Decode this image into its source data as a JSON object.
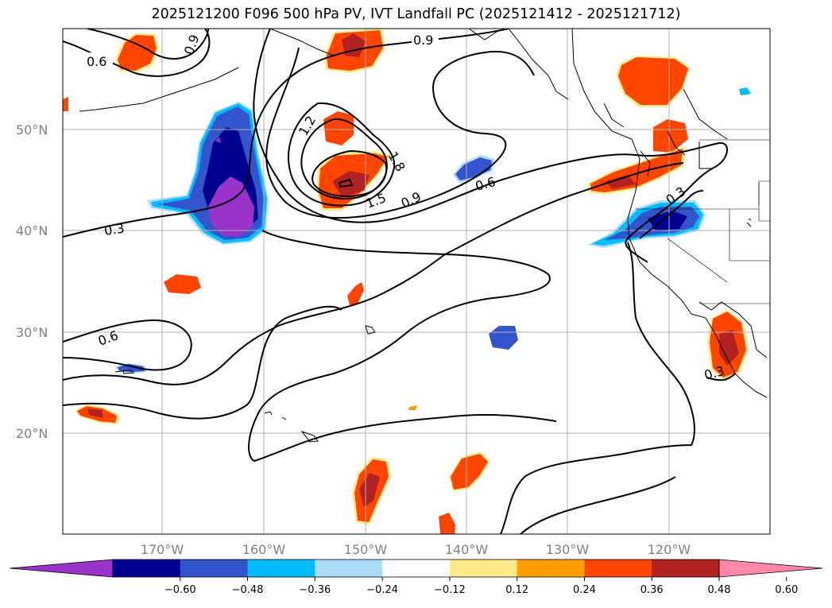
{
  "title": "2025121200 F096 500 hPa PV, IVT Landfall PC (2025121412 - 2025121712)",
  "lat_labels": [
    "50°N",
    "40°N",
    "30°N",
    "20°N"
  ],
  "lon_labels": [
    "170°W",
    "160°W",
    "150°W",
    "140°W",
    "130°W",
    "120°W"
  ],
  "contour_labels": [
    "0.6",
    "0.9",
    "0.9",
    "1.2",
    "1.8",
    "1.5",
    "0.9",
    "0.6",
    "0.3",
    "0.3",
    "0.6",
    "0.3"
  ],
  "colorbar": {
    "ticks": [
      "−0.60",
      "−0.48",
      "−0.36",
      "−0.24",
      "−0.12",
      "0.12",
      "0.24",
      "0.36",
      "0.48",
      "0.60"
    ],
    "colors": [
      "#9933cc",
      "#000090",
      "#3355cc",
      "#00bbff",
      "#aaddf5",
      "#ffffff",
      "#ffe98a",
      "#ff9e00",
      "#ff4500",
      "#b22222",
      "#ff88aa"
    ]
  },
  "colors": {
    "positive_anomaly": "#ff4500",
    "negative_anomaly": "#3355cc",
    "grid": "#b0b0b0"
  }
}
